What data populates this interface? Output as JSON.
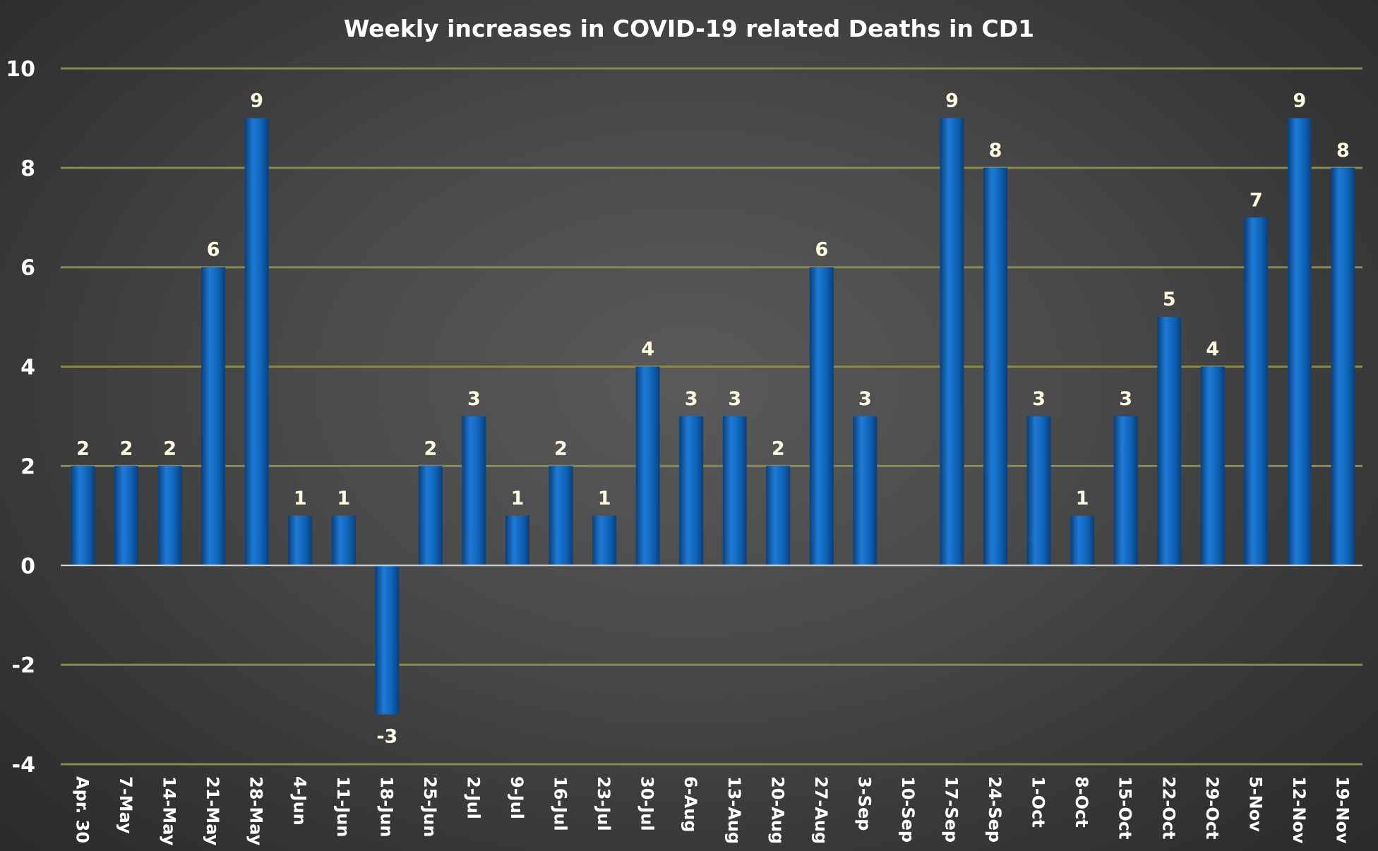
{
  "chart_data": {
    "type": "bar",
    "title": "Weekly increases in COVID-19 related Deaths in CD1",
    "xlabel": "",
    "ylabel": "",
    "ylim": [
      -4,
      10
    ],
    "yticks": [
      -4,
      -2,
      0,
      2,
      4,
      6,
      8,
      10
    ],
    "grid": true,
    "legend": "none",
    "categories": [
      "Apr. 30",
      "7-May",
      "14-May",
      "21-May",
      "28-May",
      "4-Jun",
      "11-Jun",
      "18-Jun",
      "25-Jun",
      "2-Jul",
      "9-Jul",
      "16-Jul",
      "23-Jul",
      "30-Jul",
      "6-Aug",
      "13-Aug",
      "20-Aug",
      "27-Aug",
      "3-Sep",
      "10-Sep",
      "17-Sep",
      "24-Sep",
      "1-Oct",
      "8-Oct",
      "15-Oct",
      "22-Oct",
      "29-Oct",
      "5-Nov",
      "12-Nov",
      "19-Nov"
    ],
    "values": [
      2,
      2,
      2,
      6,
      9,
      1,
      1,
      -3,
      2,
      3,
      1,
      2,
      1,
      4,
      3,
      3,
      2,
      6,
      3,
      null,
      9,
      8,
      3,
      1,
      3,
      5,
      4,
      7,
      9,
      8
    ],
    "colors": {
      "bar": "#0d63b8",
      "bar_dark": "#0a3f7a",
      "bar_light": "#1f7ad6",
      "gridline": "#8a8a4a",
      "text": "#ffffff",
      "data_label": "#fffbe0"
    }
  }
}
